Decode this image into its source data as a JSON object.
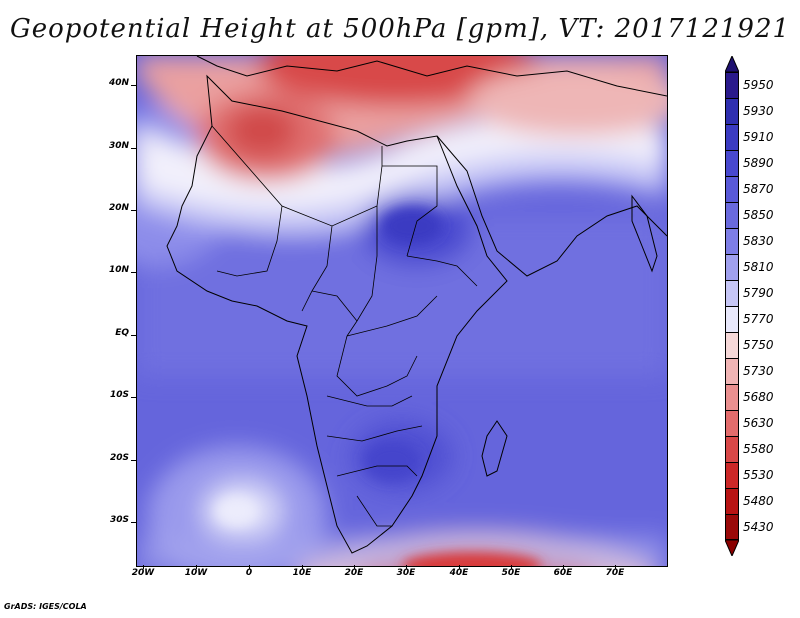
{
  "title": "Geopotential Height at 500hPa [gpm], VT: 2017121921",
  "credit": "GrADS: IGES/COLA",
  "map": {
    "lat_labels": [
      "40N",
      "30N",
      "20N",
      "10N",
      "EQ",
      "10S",
      "20S",
      "30S"
    ],
    "lon_labels": [
      "20W",
      "10W",
      "0",
      "10E",
      "20E",
      "30E",
      "40E",
      "50E",
      "60E",
      "70E"
    ]
  },
  "colorbar": {
    "labels": [
      "5950",
      "5930",
      "5910",
      "5890",
      "5870",
      "5850",
      "5830",
      "5810",
      "5790",
      "5770",
      "5750",
      "5730",
      "5680",
      "5630",
      "5580",
      "5530",
      "5480",
      "5430"
    ],
    "colors": [
      "#2a1a8c",
      "#2f2fb0",
      "#3b3bc2",
      "#4848cf",
      "#5959d8",
      "#6a6ade",
      "#7e7ee6",
      "#a0a0ee",
      "#c6c6f6",
      "#e8e8fb",
      "#f6d8d8",
      "#f1b5b5",
      "#ea9090",
      "#e36c6c",
      "#d94848",
      "#cc2828",
      "#b81414",
      "#9a0a0a"
    ],
    "top_color": "#1e1070",
    "bottom_color": "#8a0000"
  },
  "icons": {
    "colorbar_up": "up-triangle-icon",
    "colorbar_down": "down-triangle-icon"
  }
}
